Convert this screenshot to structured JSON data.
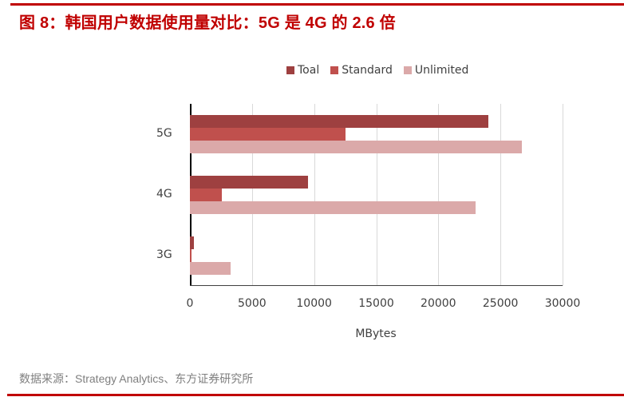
{
  "header": {
    "title": "图 8：韩国用户数据使用量对比：5G 是 4G 的 2.6 倍"
  },
  "footer": {
    "source": "数据来源：Strategy Analytics、东方证券研究所"
  },
  "colors": {
    "accent": "#c00000",
    "total": "#9e4040",
    "standard": "#c0504d",
    "unlimited": "#dba9a9"
  },
  "chart_data": {
    "type": "bar",
    "orientation": "horizontal",
    "title": "",
    "categories": [
      "5G",
      "4G",
      "3G"
    ],
    "series": [
      {
        "name": "Toal",
        "color": "#9e4040",
        "values": [
          24000,
          9500,
          350
        ]
      },
      {
        "name": "Standard",
        "color": "#c0504d",
        "values": [
          12500,
          2600,
          130
        ]
      },
      {
        "name": "Unlimited",
        "color": "#dba9a9",
        "values": [
          26700,
          23000,
          3300
        ]
      }
    ],
    "xlabel": "MBytes",
    "ylabel": "",
    "xlim": [
      0,
      30000
    ],
    "x_ticks": [
      "0",
      "5000",
      "10000",
      "15000",
      "20000",
      "25000",
      "30000"
    ],
    "grid": true,
    "legend_position": "top"
  }
}
